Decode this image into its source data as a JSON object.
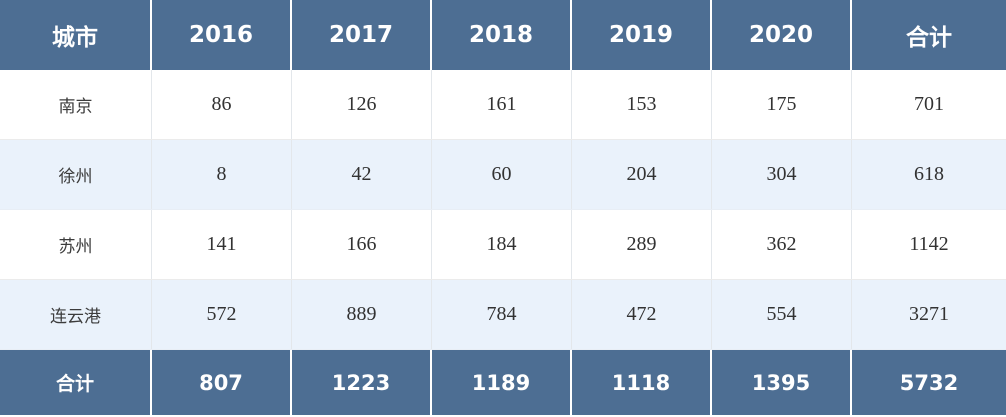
{
  "chart_data": {
    "type": "table",
    "columns": [
      "城市",
      "2016",
      "2017",
      "2018",
      "2019",
      "2020",
      "合计"
    ],
    "rows": [
      [
        "南京",
        86,
        126,
        161,
        153,
        175,
        701
      ],
      [
        "徐州",
        8,
        42,
        60,
        204,
        304,
        618
      ],
      [
        "苏州",
        141,
        166,
        184,
        289,
        362,
        1142
      ],
      [
        "连云港",
        572,
        889,
        784,
        472,
        554,
        3271
      ],
      [
        "合计",
        807,
        1223,
        1189,
        1118,
        1395,
        5732
      ]
    ],
    "header_row_label": "城市",
    "total_column_label": "合计",
    "total_row_label": "合计"
  },
  "colors": {
    "header_bg": "#4D6E93",
    "footer_bg": "#4D6E93",
    "alt_row_bg": "#EAF2FB",
    "row_bg": "#FFFFFF",
    "header_text": "#FFFFFF",
    "body_text": "#323232",
    "grid_line": "#E3E7EB"
  }
}
